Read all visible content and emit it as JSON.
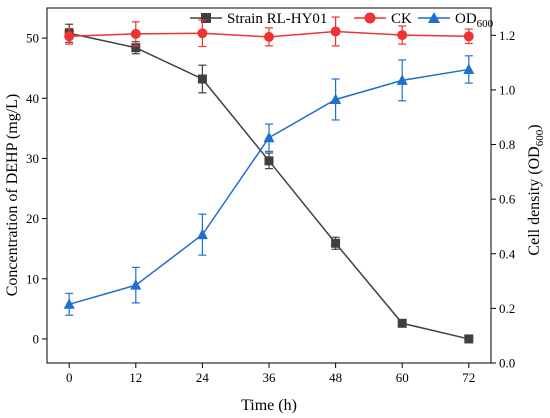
{
  "chart_data": {
    "type": "line",
    "x": [
      0,
      12,
      24,
      36,
      48,
      60,
      72
    ],
    "xticks": [
      "0",
      "12",
      "24",
      "36",
      "48",
      "60",
      "72"
    ],
    "xlim": [
      -4,
      76
    ],
    "xlabel": "Time (h)",
    "ylabel_left": "Concentration of DEHP (mg/L)",
    "ylabel_right_main": "Cell density (OD",
    "ylabel_right_sub": "600",
    "ylabel_right_close": ")",
    "ylim_left": [
      -4,
      55
    ],
    "yticks_left": [
      "0",
      "10",
      "20",
      "30",
      "40",
      "50"
    ],
    "ylim_right": [
      0,
      1.3
    ],
    "yticks_right": [
      "0.0",
      "0.2",
      "0.4",
      "0.6",
      "0.8",
      "1.0",
      "1.2"
    ],
    "grid": false,
    "legend_position": "top",
    "series": [
      {
        "name": "Strain RL-HY01",
        "axis": "left",
        "color": "#404040",
        "marker": "square",
        "values": [
          50.8,
          48.4,
          43.2,
          29.6,
          15.9,
          2.6,
          0.0
        ],
        "errors": [
          1.5,
          1.0,
          2.3,
          1.3,
          1.0,
          0.6,
          0.2
        ]
      },
      {
        "name": "CK",
        "axis": "left",
        "color": "#ee3333",
        "marker": "circle",
        "values": [
          50.3,
          50.7,
          50.8,
          50.2,
          51.1,
          50.5,
          50.3
        ],
        "errors": [
          1.3,
          2.0,
          2.2,
          1.5,
          2.4,
          1.5,
          1.2
        ]
      },
      {
        "name_main": "OD",
        "name_sub": "600",
        "axis": "right",
        "color": "#1f6fd0",
        "marker": "triangle",
        "values": [
          0.215,
          0.285,
          0.47,
          0.825,
          0.965,
          1.035,
          1.075
        ],
        "errors": [
          0.04,
          0.065,
          0.075,
          0.05,
          0.075,
          0.075,
          0.05
        ]
      }
    ]
  }
}
